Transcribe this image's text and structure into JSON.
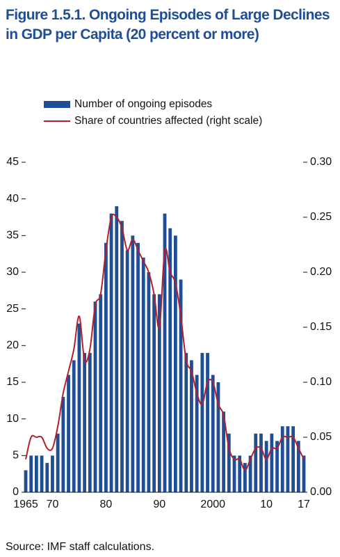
{
  "chart_data": {
    "type": "bar_line",
    "title": "Figure 1.5.1.  Ongoing Episodes of Large Declines in GDP per Capita (20 percent or more)",
    "note": "Source: IMF staff calculations.",
    "categories": [
      "1965",
      null,
      null,
      null,
      null,
      "70",
      null,
      null,
      null,
      null,
      null,
      null,
      null,
      null,
      null,
      "80",
      null,
      null,
      null,
      null,
      null,
      null,
      null,
      null,
      null,
      "90",
      null,
      null,
      null,
      null,
      null,
      null,
      null,
      null,
      null,
      "2000",
      null,
      null,
      null,
      null,
      null,
      null,
      null,
      null,
      null,
      "10",
      null,
      null,
      null,
      null,
      null,
      null,
      "17"
    ],
    "series": [
      {
        "name": "Number of ongoing episodes",
        "color": "#1f4e96",
        "kind": "bar",
        "values": [
          3,
          5,
          5,
          5,
          4,
          5,
          8,
          13,
          16,
          18,
          23,
          19,
          19,
          26,
          27,
          34,
          38,
          39,
          37,
          33,
          35,
          34,
          32,
          30,
          27,
          27,
          38,
          36,
          35,
          29,
          19,
          18,
          16,
          19,
          19,
          16,
          15,
          11,
          8,
          5,
          5,
          4,
          5,
          8,
          8,
          7,
          8,
          7,
          9,
          9,
          9,
          7,
          5
        ]
      },
      {
        "name": "Share of countries affected (right scale)",
        "color": "#b3202a",
        "kind": "line",
        "axis": "y2",
        "values": [
          0.03,
          0.05,
          0.05,
          0.05,
          0.04,
          0.04,
          0.06,
          0.09,
          0.11,
          0.13,
          0.16,
          0.12,
          0.13,
          0.17,
          0.18,
          0.22,
          0.25,
          0.25,
          0.24,
          0.22,
          0.23,
          0.22,
          0.21,
          0.2,
          0.18,
          0.15,
          0.22,
          0.2,
          0.19,
          0.16,
          0.12,
          0.11,
          0.09,
          0.08,
          0.1,
          0.1,
          0.08,
          0.07,
          0.04,
          0.03,
          0.03,
          0.02,
          0.03,
          0.04,
          0.04,
          0.03,
          0.04,
          0.04,
          0.05,
          0.05,
          0.05,
          0.04,
          0.03
        ]
      }
    ],
    "ylim": [
      0,
      45
    ],
    "yticks": [
      0,
      5,
      10,
      15,
      20,
      25,
      30,
      35,
      40,
      45
    ],
    "y2lim": [
      0,
      0.3
    ],
    "y2ticks": [
      {
        "value": 0,
        "label": "0.00"
      },
      0.05,
      {
        "value": 0.1,
        "label": "0.10"
      },
      0.15,
      {
        "value": 0.2,
        "label": "0.20"
      },
      0.25,
      {
        "value": 0.3,
        "label": "0.30"
      }
    ]
  }
}
